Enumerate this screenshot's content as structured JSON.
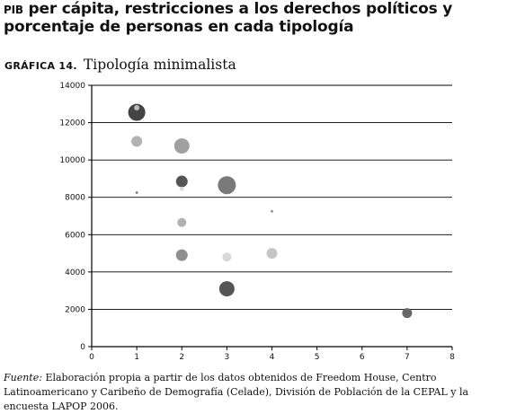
{
  "header": {
    "title_prefix": "PIB",
    "title_rest": "per cápita, restricciones a los derechos políticos y porcentaje de personas en cada tipología"
  },
  "figure": {
    "label": "GRÁFICA 14.",
    "name": "Tipología minimalista"
  },
  "source": {
    "label": "Fuente:",
    "text": "Elaboración propia a partir de los datos obtenidos de Freedom House, Centro Latinoamericano y Caribeño de Demografía (Celade), División de Población de la CEPAL y la encuesta LAPOP 2006."
  },
  "chart_data": {
    "type": "scatter",
    "title": "",
    "xlabel": "",
    "ylabel": "",
    "xlim": [
      0,
      8
    ],
    "ylim": [
      0,
      14000
    ],
    "x_ticks": [
      "0",
      "1",
      "2",
      "3",
      "4",
      "5",
      "6",
      "7",
      "8"
    ],
    "y_ticks": [
      "0",
      "2000",
      "4000",
      "6000",
      "8000",
      "10000",
      "12000",
      "14000"
    ],
    "grid": "horizontal",
    "legend": "none",
    "bubble_size_encodes": "porcentaje de personas en cada tipología",
    "points": [
      {
        "x": 1,
        "y": 12550,
        "size": 9.5,
        "color": "#444444"
      },
      {
        "x": 1,
        "y": 12800,
        "size": 3.0,
        "color": "#bbbbbb"
      },
      {
        "x": 1,
        "y": 11000,
        "size": 6.0,
        "color": "#b2b2b2"
      },
      {
        "x": 1,
        "y": 8250,
        "size": 1.5,
        "color": "#888888"
      },
      {
        "x": 2,
        "y": 10750,
        "size": 8.5,
        "color": "#a0a0a0"
      },
      {
        "x": 2,
        "y": 8850,
        "size": 6.5,
        "color": "#555555"
      },
      {
        "x": 2,
        "y": 8450,
        "size": 2.5,
        "color": "#dddddd"
      },
      {
        "x": 2,
        "y": 6650,
        "size": 5.0,
        "color": "#b2b2b2"
      },
      {
        "x": 2,
        "y": 4900,
        "size": 6.5,
        "color": "#8f8f8f"
      },
      {
        "x": 3,
        "y": 8650,
        "size": 10.0,
        "color": "#7a7a7a"
      },
      {
        "x": 3,
        "y": 4800,
        "size": 5.0,
        "color": "#d8d8d8"
      },
      {
        "x": 3,
        "y": 3100,
        "size": 8.5,
        "color": "#555555"
      },
      {
        "x": 4,
        "y": 7250,
        "size": 1.5,
        "color": "#999999"
      },
      {
        "x": 4,
        "y": 5000,
        "size": 6.0,
        "color": "#c6c6c6"
      },
      {
        "x": 7,
        "y": 1800,
        "size": 5.5,
        "color": "#666666"
      }
    ],
    "colors": {
      "axis": "#000000",
      "grid": "#000000"
    }
  }
}
